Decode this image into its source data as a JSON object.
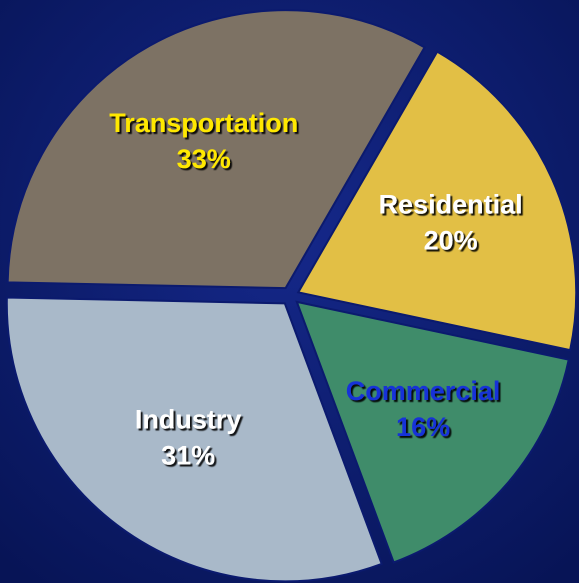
{
  "chart_data": {
    "type": "pie",
    "categories": [
      "Transportation",
      "Residential",
      "Commercial",
      "Industry"
    ],
    "values": [
      33,
      20,
      16,
      31
    ],
    "value_labels": [
      "33%",
      "20%",
      "16%",
      "31%"
    ],
    "colors": [
      "#7d7264",
      "#e2bf45",
      "#3f8c6a",
      "#a9b9c9"
    ]
  }
}
